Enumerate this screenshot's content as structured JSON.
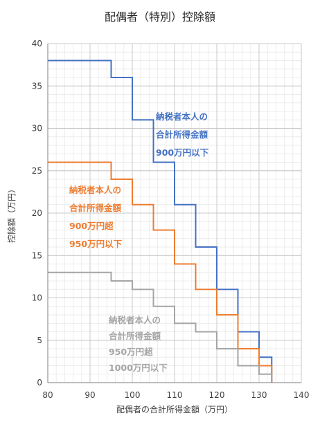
{
  "chart_data": {
    "type": "line",
    "title": "配偶者（特別）控除額",
    "xlabel": "配偶者の合計所得金額（万円）",
    "ylabel": "控除額（万円）",
    "xlim": [
      80,
      140
    ],
    "ylim": [
      0,
      40
    ],
    "x_ticks": [
      80,
      90,
      100,
      110,
      120,
      130,
      140
    ],
    "y_ticks": [
      0,
      5,
      10,
      15,
      20,
      25,
      30,
      35,
      40
    ],
    "grid": true,
    "minor_grid": true,
    "series": [
      {
        "color": "#4472C4",
        "x": [
          80,
          95,
          95,
          100,
          100,
          105,
          105,
          110,
          110,
          115,
          115,
          120,
          120,
          125,
          125,
          130,
          130,
          133,
          133
        ],
        "y": [
          38,
          38,
          36,
          36,
          31,
          31,
          26,
          26,
          21,
          21,
          16,
          16,
          11,
          11,
          6,
          6,
          3,
          3,
          0
        ]
      },
      {
        "color": "#ED7D31",
        "x": [
          80,
          95,
          95,
          100,
          100,
          105,
          105,
          110,
          110,
          115,
          115,
          120,
          120,
          125,
          125,
          130,
          130,
          133,
          133
        ],
        "y": [
          26,
          26,
          24,
          24,
          21,
          21,
          18,
          18,
          14,
          14,
          11,
          11,
          8,
          8,
          4,
          4,
          2,
          2,
          0
        ]
      },
      {
        "color": "#A5A5A5",
        "x": [
          80,
          95,
          95,
          100,
          100,
          105,
          105,
          110,
          110,
          115,
          115,
          120,
          120,
          125,
          125,
          130,
          130,
          133,
          133
        ],
        "y": [
          13,
          13,
          12,
          12,
          11,
          11,
          9,
          9,
          7,
          7,
          6,
          6,
          4,
          4,
          2,
          2,
          1,
          1,
          0
        ]
      }
    ],
    "annotations": [
      {
        "color": "#4472C4",
        "lines": [
          "納税者本人の",
          "合計所得金額",
          "900万円以下"
        ]
      },
      {
        "color": "#ED7D31",
        "lines": [
          "納税者本人の",
          "合計所得金額",
          "900万円超",
          "950万円以下"
        ]
      },
      {
        "color": "#A5A5A5",
        "lines": [
          "納税者本人の",
          "合計所得金額",
          "950万円超",
          "1000万円以下"
        ]
      }
    ]
  }
}
